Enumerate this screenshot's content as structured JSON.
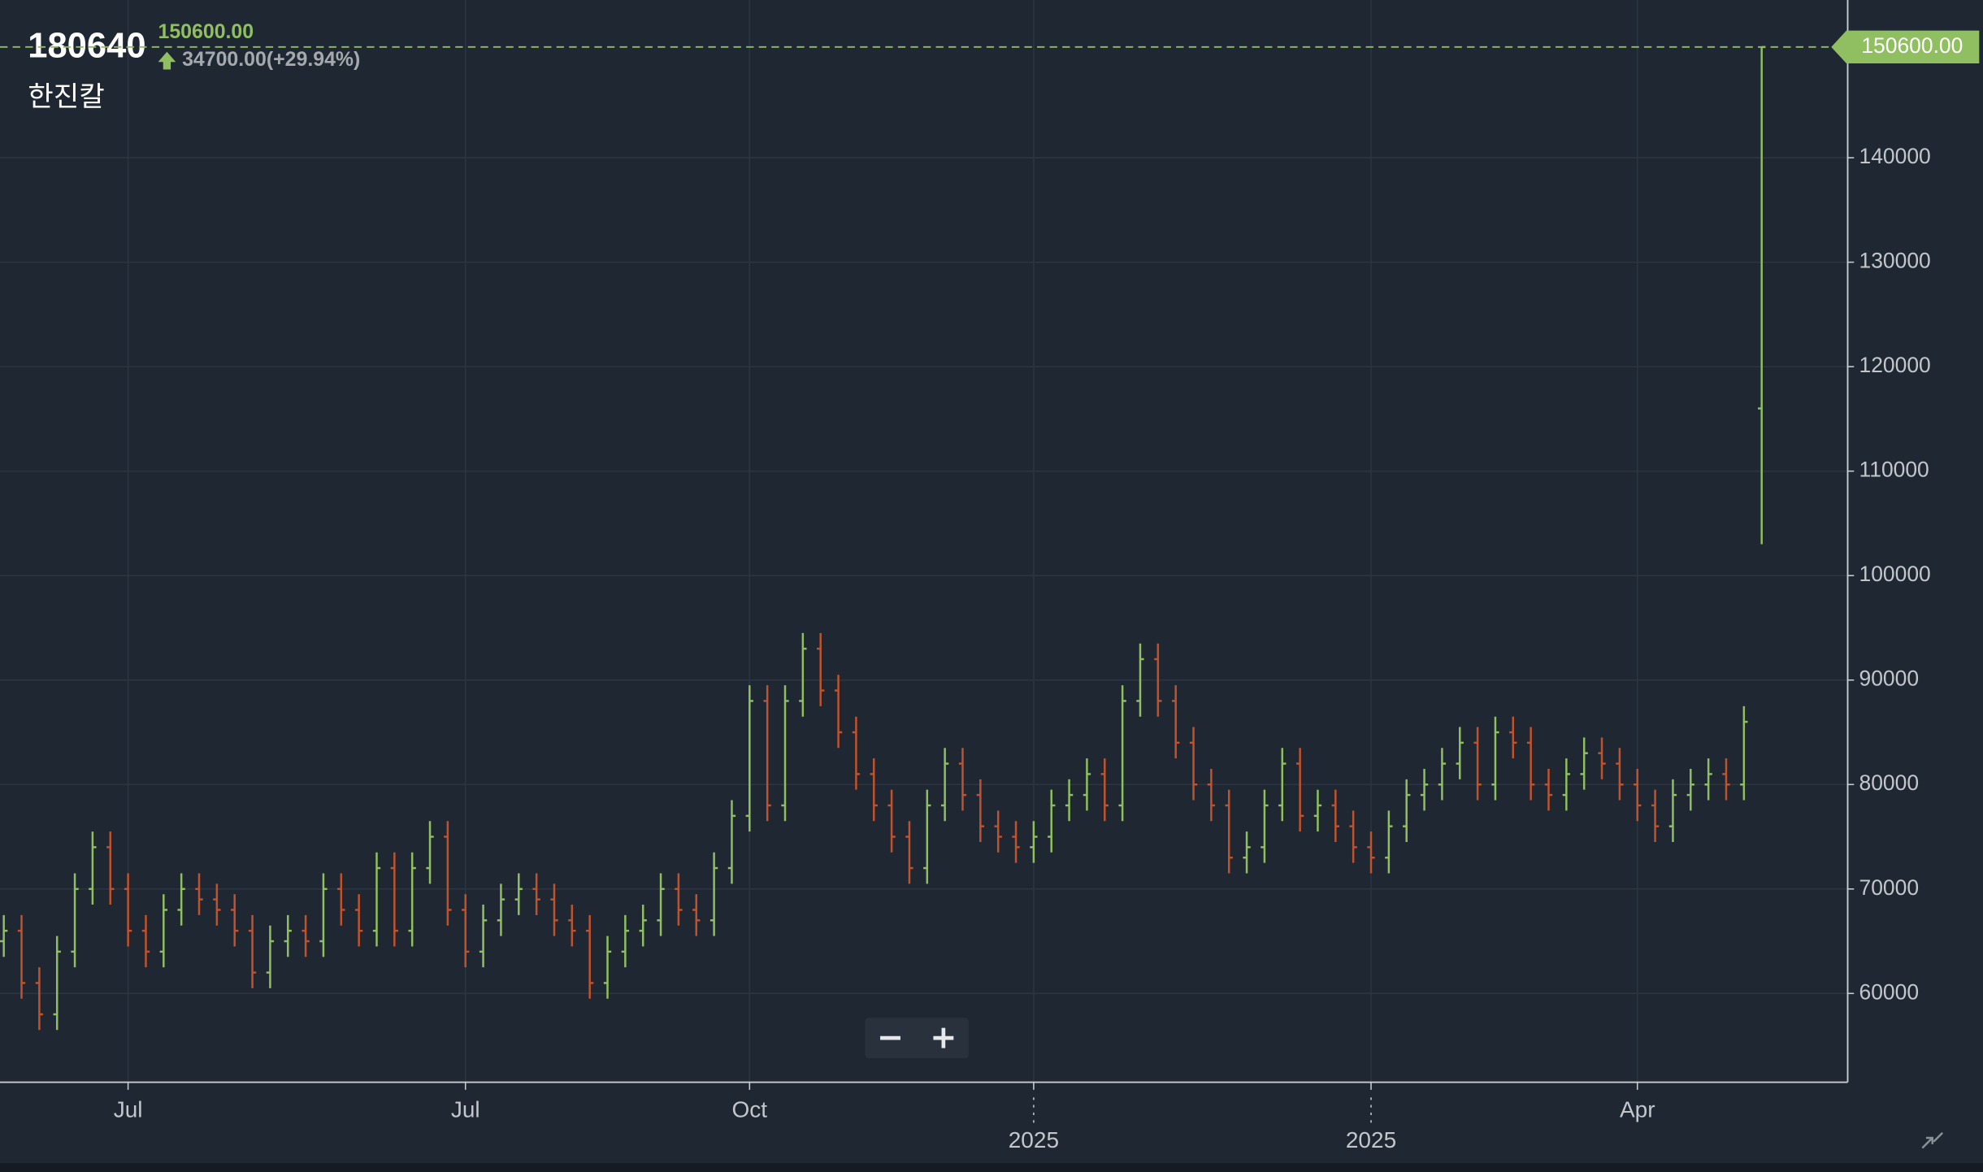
{
  "header": {
    "symbol": "180640",
    "name": "한진칼",
    "price": "150600.00",
    "change": "34700.00(+29.94%)"
  },
  "chart_data": {
    "type": "ohlc",
    "categories": [
      null,
      null,
      null,
      null,
      null,
      null,
      null,
      "Jul",
      null,
      null,
      null,
      null,
      null,
      null,
      null,
      null,
      null,
      null,
      null,
      null,
      null,
      null,
      null,
      null,
      null,
      null,
      "Jul",
      null,
      null,
      null,
      null,
      null,
      null,
      null,
      null,
      null,
      null,
      null,
      null,
      null,
      null,
      null,
      "Oct",
      null,
      null,
      null,
      null,
      null,
      null,
      null,
      null,
      null,
      null,
      null,
      null,
      null,
      null,
      null,
      "2025",
      null,
      null,
      null,
      null,
      null,
      null,
      null,
      null,
      null,
      null,
      null,
      null,
      null,
      null,
      null,
      null,
      null,
      null,
      "2025",
      null,
      null,
      null,
      null,
      null,
      null,
      null,
      null,
      null,
      null,
      null,
      null,
      null,
      null,
      "Apr",
      null,
      null,
      null,
      null,
      null,
      null,
      null
    ],
    "open": [
      65000,
      66000,
      61000,
      58000,
      64000,
      70000,
      74000,
      70000,
      66000,
      64000,
      68000,
      70000,
      69000,
      68000,
      66000,
      62000,
      65000,
      66000,
      65000,
      70000,
      68000,
      66000,
      72000,
      66000,
      72000,
      75000,
      68000,
      64000,
      67000,
      69000,
      70000,
      69000,
      67000,
      66000,
      61000,
      64000,
      66000,
      67000,
      70000,
      68000,
      67000,
      72000,
      77000,
      88000,
      78000,
      88000,
      93000,
      89000,
      85000,
      81000,
      78000,
      75000,
      72000,
      78000,
      82000,
      79000,
      76000,
      75000,
      74000,
      75000,
      78000,
      79000,
      81000,
      78000,
      88000,
      92000,
      88000,
      84000,
      80000,
      78000,
      73000,
      74000,
      78000,
      82000,
      77000,
      78000,
      76000,
      74000,
      73000,
      76000,
      79000,
      80000,
      82000,
      84000,
      80000,
      85000,
      84000,
      80000,
      79000,
      81000,
      83000,
      82000,
      80000,
      78000,
      76000,
      79000,
      80000,
      81000,
      80000,
      116000
    ],
    "high": [
      67500,
      67500,
      62500,
      65500,
      71500,
      75500,
      75500,
      71500,
      67500,
      69500,
      71500,
      71500,
      70500,
      69500,
      67500,
      66500,
      67500,
      67500,
      71500,
      71500,
      69500,
      73500,
      73500,
      73500,
      76500,
      76500,
      69500,
      68500,
      70500,
      71500,
      71500,
      70500,
      68500,
      67500,
      65500,
      67500,
      68500,
      71500,
      71500,
      69500,
      73500,
      78500,
      89500,
      89500,
      89500,
      94500,
      94500,
      90500,
      86500,
      82500,
      79500,
      76500,
      79500,
      83500,
      83500,
      80500,
      77500,
      76500,
      76500,
      79500,
      80500,
      82500,
      82500,
      89500,
      93500,
      93500,
      89500,
      85500,
      81500,
      79500,
      75500,
      79500,
      83500,
      83500,
      79500,
      79500,
      77500,
      75500,
      77500,
      80500,
      81500,
      83500,
      85500,
      85500,
      86500,
      86500,
      85500,
      81500,
      82500,
      84500,
      84500,
      83500,
      81500,
      79500,
      80500,
      81500,
      82500,
      82500,
      87500,
      150600
    ],
    "low": [
      63500,
      59500,
      56500,
      56500,
      62500,
      68500,
      68500,
      64500,
      62500,
      62500,
      66500,
      67500,
      66500,
      64500,
      60500,
      60500,
      63500,
      63500,
      63500,
      66500,
      64500,
      64500,
      64500,
      64500,
      70500,
      66500,
      62500,
      62500,
      65500,
      67500,
      67500,
      65500,
      64500,
      59500,
      59500,
      62500,
      64500,
      65500,
      66500,
      65500,
      65500,
      70500,
      75500,
      76500,
      76500,
      86500,
      87500,
      83500,
      79500,
      76500,
      73500,
      70500,
      70500,
      76500,
      77500,
      74500,
      73500,
      72500,
      72500,
      73500,
      76500,
      77500,
      76500,
      76500,
      86500,
      86500,
      82500,
      78500,
      76500,
      71500,
      71500,
      72500,
      76500,
      75500,
      75500,
      74500,
      72500,
      71500,
      71500,
      74500,
      77500,
      78500,
      80500,
      78500,
      78500,
      82500,
      78500,
      77500,
      77500,
      79500,
      80500,
      78500,
      76500,
      74500,
      74500,
      77500,
      78500,
      78500,
      78500,
      103000
    ],
    "close": [
      66000,
      61000,
      58000,
      64000,
      70000,
      74000,
      70000,
      66000,
      64000,
      68000,
      70000,
      69000,
      68000,
      66000,
      62000,
      65000,
      66000,
      65000,
      70000,
      68000,
      66000,
      72000,
      66000,
      72000,
      75000,
      68000,
      64000,
      67000,
      69000,
      70000,
      69000,
      67000,
      66000,
      61000,
      64000,
      66000,
      67000,
      70000,
      68000,
      67000,
      72000,
      77000,
      88000,
      78000,
      88000,
      93000,
      89000,
      85000,
      81000,
      78000,
      75000,
      72000,
      78000,
      82000,
      79000,
      76000,
      75000,
      74000,
      75000,
      78000,
      79000,
      81000,
      78000,
      88000,
      92000,
      88000,
      84000,
      80000,
      78000,
      73000,
      74000,
      78000,
      82000,
      77000,
      78000,
      76000,
      74000,
      73000,
      76000,
      79000,
      80000,
      82000,
      84000,
      80000,
      85000,
      84000,
      80000,
      79000,
      81000,
      83000,
      82000,
      80000,
      78000,
      76000,
      79000,
      80000,
      81000,
      80000,
      86000,
      150600
    ],
    "up_color": "#8fbf60",
    "down_color": "#c0532d",
    "ylim": [
      51500,
      155100
    ],
    "yticks": [
      60000,
      70000,
      80000,
      90000,
      100000,
      110000,
      120000,
      130000,
      140000
    ],
    "last_price": {
      "value": 150600,
      "label": "150600.00"
    },
    "grid": true
  }
}
